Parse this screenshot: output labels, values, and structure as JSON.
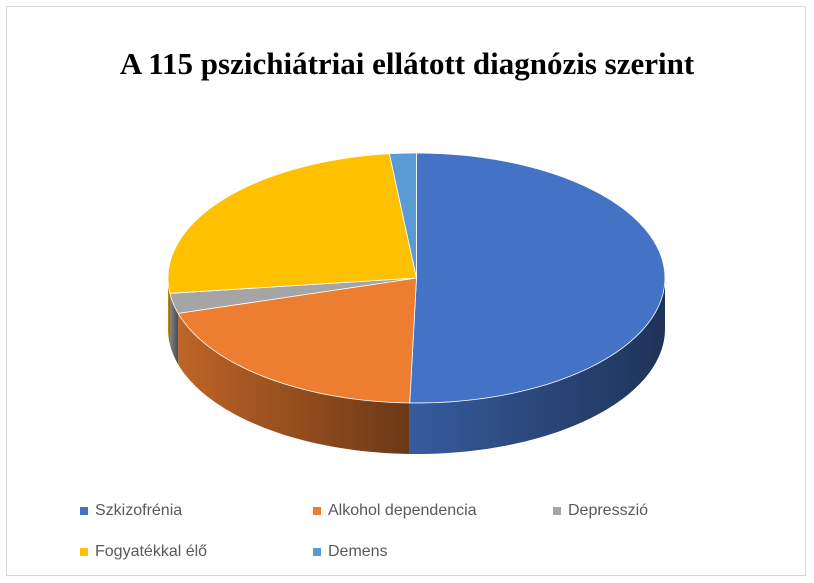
{
  "chart_data": {
    "type": "pie3d",
    "title": "A 115 pszichiátriai ellátott diagnózis szerint",
    "categories": [
      "Szkizofrénia",
      "Alkohol dependencia",
      "Depresszió",
      "Fogyatékkal élő",
      "Demens"
    ],
    "values": [
      58,
      23,
      3,
      29,
      2
    ],
    "colors": [
      "#4472c4",
      "#ed7d31",
      "#a5a5a5",
      "#ffc000",
      "#5b9bd5"
    ],
    "legend": "bottom"
  }
}
